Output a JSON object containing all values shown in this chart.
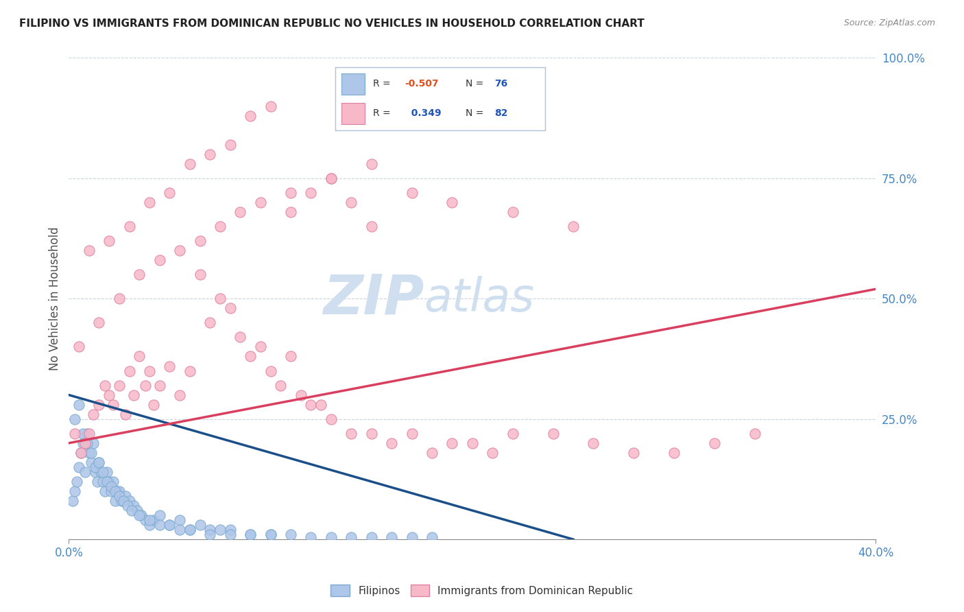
{
  "title": "FILIPINO VS IMMIGRANTS FROM DOMINICAN REPUBLIC NO VEHICLES IN HOUSEHOLD CORRELATION CHART",
  "source": "Source: ZipAtlas.com",
  "ylabel_label": "No Vehicles in Household",
  "legend_labels": [
    "Filipinos",
    "Immigrants from Dominican Republic"
  ],
  "blue_R": -0.507,
  "blue_N": 76,
  "pink_R": 0.349,
  "pink_N": 82,
  "blue_color": "#aec6e8",
  "pink_color": "#f7b8c8",
  "blue_line_color": "#1a4f8a",
  "pink_line_color": "#d94060",
  "watermark_zip": "ZIP",
  "watermark_atlas": "atlas",
  "watermark_color": "#d0dff0",
  "background": "#ffffff",
  "grid_color": "#c8d4e0",
  "axis_label_color": "#4488cc",
  "title_color": "#222222",
  "legend_border_color": "#b0c0d8",
  "R_neg_color": "#e05020",
  "R_pos_color": "#2255bb",
  "N_color": "#2255bb",
  "blue_scatter_x": [
    0.2,
    0.3,
    0.4,
    0.5,
    0.6,
    0.7,
    0.8,
    0.9,
    1.0,
    1.1,
    1.2,
    1.3,
    1.4,
    1.5,
    1.6,
    1.7,
    1.8,
    1.9,
    2.0,
    2.1,
    2.2,
    2.3,
    2.4,
    2.5,
    2.6,
    2.8,
    3.0,
    3.2,
    3.4,
    3.6,
    3.8,
    4.0,
    4.2,
    4.5,
    5.0,
    5.5,
    6.0,
    6.5,
    7.0,
    7.5,
    8.0,
    9.0,
    10.0,
    11.0,
    12.0,
    13.0,
    14.0,
    15.0,
    16.0,
    17.0,
    18.0,
    0.3,
    0.5,
    0.7,
    0.9,
    1.1,
    1.3,
    1.5,
    1.7,
    1.9,
    2.1,
    2.3,
    2.5,
    2.7,
    2.9,
    3.1,
    3.5,
    4.0,
    4.5,
    5.0,
    5.5,
    6.0,
    7.0,
    8.0,
    9.0,
    10.0
  ],
  "blue_scatter_y": [
    8,
    10,
    12,
    15,
    18,
    20,
    14,
    22,
    18,
    16,
    20,
    14,
    12,
    16,
    14,
    12,
    10,
    14,
    12,
    10,
    12,
    8,
    10,
    10,
    8,
    9,
    8,
    7,
    6,
    5,
    4,
    3,
    4,
    5,
    3,
    4,
    2,
    3,
    2,
    2,
    2,
    1,
    1,
    1,
    0.5,
    0.5,
    0.5,
    0.5,
    0.5,
    0.5,
    0.5,
    25,
    28,
    22,
    20,
    18,
    15,
    16,
    14,
    12,
    11,
    10,
    9,
    8,
    7,
    6,
    5,
    4,
    3,
    3,
    2,
    2,
    1,
    1,
    1,
    1
  ],
  "pink_scatter_x": [
    0.3,
    0.6,
    0.8,
    1.0,
    1.2,
    1.5,
    1.8,
    2.0,
    2.2,
    2.5,
    2.8,
    3.0,
    3.2,
    3.5,
    3.8,
    4.0,
    4.2,
    4.5,
    5.0,
    5.5,
    6.0,
    6.5,
    7.0,
    7.5,
    8.0,
    8.5,
    9.0,
    9.5,
    10.0,
    10.5,
    11.0,
    11.5,
    12.0,
    12.5,
    13.0,
    14.0,
    15.0,
    16.0,
    17.0,
    18.0,
    19.0,
    20.0,
    21.0,
    22.0,
    24.0,
    26.0,
    28.0,
    30.0,
    32.0,
    34.0,
    1.0,
    2.0,
    3.0,
    4.0,
    5.0,
    6.0,
    7.0,
    8.0,
    9.0,
    10.0,
    11.0,
    12.0,
    13.0,
    14.0,
    15.0,
    0.5,
    1.5,
    2.5,
    3.5,
    4.5,
    5.5,
    6.5,
    7.5,
    8.5,
    9.5,
    11.0,
    13.0,
    15.0,
    17.0,
    19.0,
    22.0,
    25.0
  ],
  "pink_scatter_y": [
    22,
    18,
    20,
    22,
    26,
    28,
    32,
    30,
    28,
    32,
    26,
    35,
    30,
    38,
    32,
    35,
    28,
    32,
    36,
    30,
    35,
    55,
    45,
    50,
    48,
    42,
    38,
    40,
    35,
    32,
    38,
    30,
    28,
    28,
    25,
    22,
    22,
    20,
    22,
    18,
    20,
    20,
    18,
    22,
    22,
    20,
    18,
    18,
    20,
    22,
    60,
    62,
    65,
    70,
    72,
    78,
    80,
    82,
    88,
    90,
    68,
    72,
    75,
    70,
    65,
    40,
    45,
    50,
    55,
    58,
    60,
    62,
    65,
    68,
    70,
    72,
    75,
    78,
    72,
    70,
    68,
    65
  ]
}
